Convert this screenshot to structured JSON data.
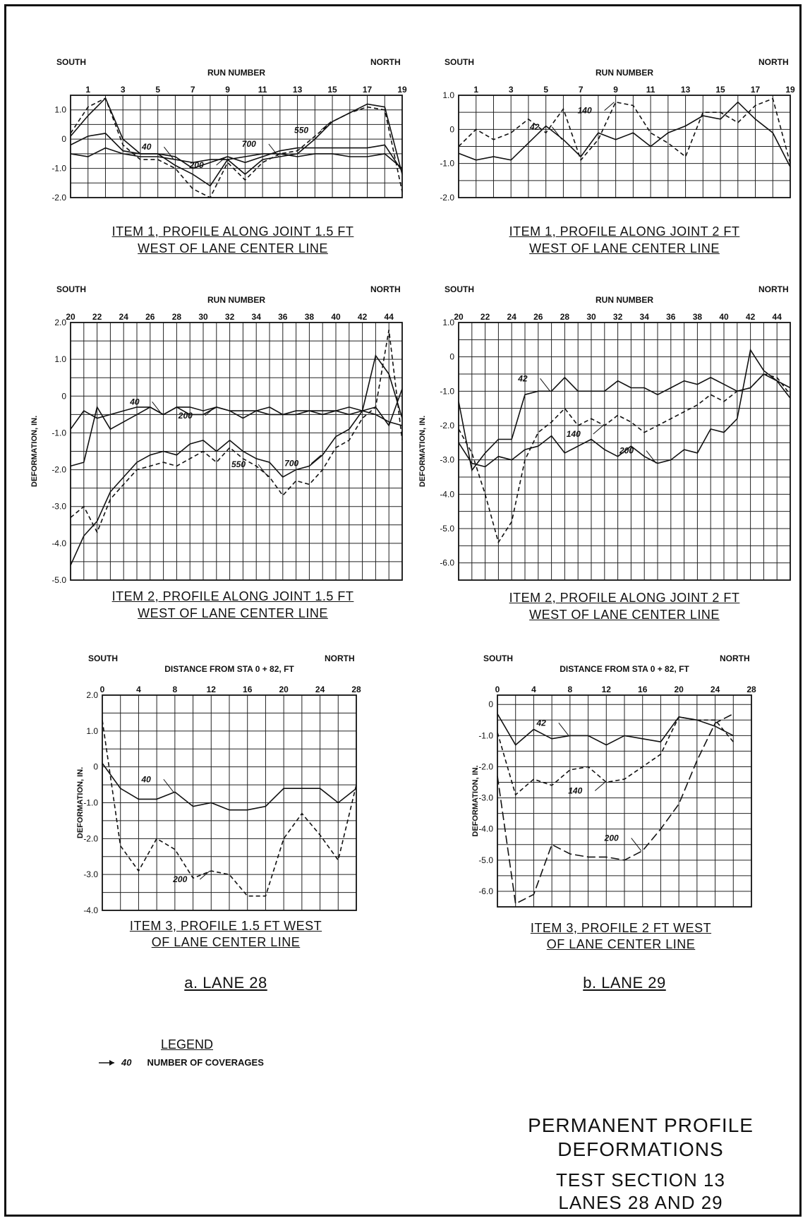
{
  "legend": {
    "heading": "LEGEND",
    "sample_label": "40",
    "text": "NUMBER OF COVERAGES"
  },
  "lanes": {
    "a": "a. LANE 28",
    "b": "b. LANE 29"
  },
  "main_title": {
    "line1": "PERMANENT PROFILE",
    "line2": "DEFORMATIONS",
    "line3": "TEST SECTION 13",
    "line4": "LANES 28 AND 29"
  },
  "charts": [
    {
      "id": "i1_lane28",
      "caption1": "ITEM 1, PROFILE ALONG JOINT 1.5 FT",
      "caption2": "WEST OF LANE CENTER LINE",
      "south": "SOUTH",
      "north": "NORTH",
      "xlabel": "RUN NUMBER",
      "ylabel": "",
      "ytick_labels": [
        "1.0",
        "0",
        "-1.0",
        "-2.0"
      ]
    },
    {
      "id": "i1_lane29",
      "caption1": "ITEM 1, PROFILE ALONG JOINT 2 FT",
      "caption2": "WEST OF LANE CENTER LINE",
      "south": "SOUTH",
      "north": "NORTH",
      "xlabel": "RUN NUMBER",
      "ylabel": "",
      "ytick_labels": [
        "1.0",
        "0",
        "-1.0",
        "-2.0"
      ]
    },
    {
      "id": "i2_lane28",
      "caption1": "ITEM 2, PROFILE ALONG JOINT 1.5 FT",
      "caption2": "WEST OF LANE CENTER LINE",
      "south": "SOUTH",
      "north": "NORTH",
      "xlabel": "RUN NUMBER",
      "ylabel": "DEFORMATION, IN.",
      "ytick_labels": [
        "2.0",
        "1.0",
        "0",
        "-1.0",
        "-2.0",
        "-3.0",
        "-4.0",
        "-5.0"
      ]
    },
    {
      "id": "i2_lane29",
      "caption1": "ITEM 2, PROFILE ALONG JOINT 2 FT",
      "caption2": "WEST OF LANE CENTER LINE",
      "south": "SOUTH",
      "north": "NORTH",
      "xlabel": "RUN NUMBER",
      "ylabel": "DEFORMATION, IN.",
      "ytick_labels": [
        "1.0",
        "0",
        "-1.0",
        "-2.0",
        "-3.0",
        "-4.0",
        "-5.0",
        "-6.0"
      ]
    },
    {
      "id": "i3_lane28",
      "caption1": "ITEM 3, PROFILE 1.5 FT WEST",
      "caption2": "OF LANE CENTER LINE",
      "south": "SOUTH",
      "north": "NORTH",
      "xlabel": "DISTANCE FROM STA 0 + 82, FT",
      "ylabel": "DEFORMATION, IN.",
      "ytick_labels": [
        "2.0",
        "1.0",
        "0",
        "-1.0",
        "-2.0",
        "-3.0",
        "-4.0"
      ]
    },
    {
      "id": "i3_lane29",
      "caption1": "ITEM 3, PROFILE 2 FT WEST",
      "caption2": "OF LANE CENTER LINE",
      "south": "SOUTH",
      "north": "NORTH",
      "xlabel": "DISTANCE FROM STA 0 + 82, FT",
      "ylabel": "DEFORMATION, IN.",
      "ytick_labels": [
        "0",
        "-1.0",
        "-2.0",
        "-3.0",
        "-4.0",
        "-5.0",
        "-6.0"
      ]
    }
  ],
  "chart_data": [
    {
      "type": "line",
      "id": "i1_lane28",
      "x": [
        0,
        1,
        2,
        3,
        4,
        5,
        6,
        7,
        8,
        9,
        10,
        11,
        12,
        13,
        14,
        15,
        16,
        17,
        18,
        19
      ],
      "xticks": [
        1,
        3,
        5,
        7,
        9,
        11,
        13,
        15,
        17,
        19
      ],
      "xlim": [
        0,
        19
      ],
      "ylim": [
        -2.0,
        1.0
      ],
      "ymax": 1.5,
      "series": [
        {
          "name": "40",
          "dash": "solid",
          "values": [
            -0.5,
            -0.6,
            -0.3,
            -0.5,
            -0.6,
            -0.6,
            -0.7,
            -0.8,
            -0.7,
            -0.7,
            -0.6,
            -0.5,
            -0.5,
            -0.6,
            -0.5,
            -0.5,
            -0.6,
            -0.6,
            -0.5,
            -1.0
          ]
        },
        {
          "name": "200",
          "dash": "solid",
          "values": [
            -0.2,
            0.1,
            0.2,
            -0.4,
            -0.5,
            -0.5,
            -0.6,
            -1.0,
            -0.8,
            -0.6,
            -0.8,
            -0.6,
            -0.4,
            -0.3,
            -0.3,
            -0.3,
            -0.3,
            -0.3,
            -0.2,
            -1.1
          ]
        },
        {
          "name": "700",
          "dash": "solid",
          "values": [
            0.1,
            0.8,
            1.4,
            0.0,
            -0.5,
            -0.5,
            -0.9,
            -1.2,
            -1.6,
            -0.7,
            -1.2,
            -0.7,
            -0.6,
            -0.5,
            0.0,
            0.6,
            0.9,
            1.2,
            1.1,
            -1.2
          ]
        },
        {
          "name": "550",
          "dash": "dashed",
          "values": [
            0.2,
            1.1,
            1.4,
            -0.2,
            -0.7,
            -0.7,
            -1.0,
            -1.7,
            -2.0,
            -0.8,
            -1.4,
            -0.8,
            -0.5,
            -0.4,
            0.1,
            0.6,
            0.9,
            1.1,
            1.0,
            -1.8
          ]
        }
      ],
      "annotations": [
        "200",
        "40",
        "700",
        "550"
      ]
    },
    {
      "type": "line",
      "id": "i1_lane29",
      "x": [
        0,
        1,
        2,
        3,
        4,
        5,
        6,
        7,
        8,
        9,
        10,
        11,
        12,
        13,
        14,
        15,
        16,
        17,
        18,
        19
      ],
      "xticks": [
        1,
        3,
        5,
        7,
        9,
        11,
        13,
        15,
        17,
        19
      ],
      "xlim": [
        0,
        19
      ],
      "ylim": [
        -2.0,
        1.0
      ],
      "ymax": 1.0,
      "series": [
        {
          "name": "42",
          "dash": "solid",
          "values": [
            -0.7,
            -0.9,
            -0.8,
            -0.9,
            -0.4,
            0.1,
            -0.3,
            -0.8,
            -0.1,
            -0.3,
            -0.1,
            -0.5,
            -0.1,
            0.1,
            0.4,
            0.3,
            0.8,
            0.3,
            -0.1,
            -1.1
          ]
        },
        {
          "name": "140",
          "dash": "dashed",
          "values": [
            -0.5,
            0.0,
            -0.3,
            -0.1,
            0.3,
            -0.1,
            0.6,
            -0.9,
            -0.3,
            0.8,
            0.7,
            -0.1,
            -0.4,
            -0.8,
            0.5,
            0.5,
            0.2,
            0.7,
            0.9,
            -1.0
          ]
        }
      ],
      "annotations": [
        "140",
        "42"
      ]
    },
    {
      "type": "line",
      "id": "i2_lane28",
      "x": [
        20,
        21,
        22,
        23,
        24,
        25,
        26,
        27,
        28,
        29,
        30,
        31,
        32,
        33,
        34,
        35,
        36,
        37,
        38,
        39,
        40,
        41,
        42,
        43,
        44,
        45
      ],
      "xticks": [
        20,
        22,
        24,
        26,
        28,
        30,
        32,
        34,
        36,
        38,
        40,
        42,
        44
      ],
      "xlim": [
        20,
        45
      ],
      "ylim": [
        -5.0,
        2.0
      ],
      "ymax": 2.0,
      "series": [
        {
          "name": "40",
          "dash": "solid",
          "values": [
            -0.9,
            -0.4,
            -0.6,
            -0.5,
            -0.4,
            -0.3,
            -0.3,
            -0.5,
            -0.3,
            -0.3,
            -0.4,
            -0.3,
            -0.4,
            -0.4,
            -0.4,
            -0.5,
            -0.5,
            -0.4,
            -0.4,
            -0.4,
            -0.4,
            -0.5,
            -0.4,
            -0.5,
            -0.7,
            -0.8
          ]
        },
        {
          "name": "200",
          "dash": "solid",
          "values": [
            -1.9,
            -1.8,
            -0.3,
            -0.9,
            -0.7,
            -0.5,
            -0.3,
            -0.5,
            -0.3,
            -0.5,
            -0.5,
            -0.3,
            -0.4,
            -0.6,
            -0.4,
            -0.3,
            -0.5,
            -0.5,
            -0.4,
            -0.5,
            -0.4,
            -0.3,
            -0.4,
            -0.3,
            -0.8,
            0.2
          ]
        },
        {
          "name": "550",
          "dash": "dashed",
          "values": [
            -3.3,
            -3.0,
            -3.7,
            -2.8,
            -2.4,
            -2.0,
            -1.9,
            -1.8,
            -1.9,
            -1.7,
            -1.5,
            -1.8,
            -1.4,
            -1.7,
            -1.9,
            -2.2,
            -2.7,
            -2.3,
            -2.4,
            -2.0,
            -1.4,
            -1.2,
            -0.6,
            -0.3,
            1.8,
            -1.2
          ]
        },
        {
          "name": "700",
          "dash": "solid",
          "values": [
            -4.6,
            -3.8,
            -3.4,
            -2.6,
            -2.2,
            -1.8,
            -1.6,
            -1.5,
            -1.6,
            -1.3,
            -1.2,
            -1.5,
            -1.2,
            -1.5,
            -1.7,
            -1.8,
            -2.2,
            -2.0,
            -1.9,
            -1.6,
            -1.1,
            -0.9,
            -0.4,
            1.1,
            0.6,
            -0.6
          ]
        }
      ],
      "annotations": [
        "40",
        "40",
        "40",
        "200",
        "550",
        "700"
      ]
    },
    {
      "type": "line",
      "id": "i2_lane29",
      "x": [
        20,
        21,
        22,
        23,
        24,
        25,
        26,
        27,
        28,
        29,
        30,
        31,
        32,
        33,
        34,
        35,
        36,
        37,
        38,
        39,
        40,
        41,
        42,
        43,
        44,
        45
      ],
      "xticks": [
        20,
        22,
        24,
        26,
        28,
        30,
        32,
        34,
        36,
        38,
        40,
        42,
        44
      ],
      "xlim": [
        20,
        45
      ],
      "ylim": [
        -6.5,
        1.0
      ],
      "ymax": 1.0,
      "series": [
        {
          "name": "42",
          "dash": "solid",
          "values": [
            -1.3,
            -3.3,
            -2.8,
            -2.4,
            -2.4,
            -1.1,
            -1.0,
            -1.0,
            -0.6,
            -1.0,
            -1.0,
            -1.0,
            -0.7,
            -0.9,
            -0.9,
            -1.1,
            -0.9,
            -0.7,
            -0.8,
            -0.6,
            -0.8,
            -1.0,
            -0.9,
            -0.5,
            -0.7,
            -1.2
          ]
        },
        {
          "name": "140",
          "dash": "dashed",
          "values": [
            -2.1,
            -2.8,
            -4.0,
            -5.4,
            -4.8,
            -3.0,
            -2.2,
            -1.9,
            -1.5,
            -2.0,
            -1.8,
            -2.0,
            -1.7,
            -1.9,
            -2.2,
            -2.0,
            -1.8,
            -1.6,
            -1.4,
            -1.1,
            -1.3,
            -1.0,
            -0.9,
            -0.5,
            -0.6,
            -1.1
          ]
        },
        {
          "name": "200",
          "dash": "solid",
          "values": [
            -2.5,
            -3.1,
            -3.2,
            -2.9,
            -3.0,
            -2.7,
            -2.6,
            -2.3,
            -2.8,
            -2.6,
            -2.4,
            -2.7,
            -2.9,
            -2.6,
            -2.9,
            -3.1,
            -3.0,
            -2.7,
            -2.8,
            -2.1,
            -2.2,
            -1.8,
            0.2,
            -0.4,
            -0.7,
            -0.9
          ]
        }
      ],
      "annotations": [
        "42",
        "140",
        "200"
      ]
    },
    {
      "type": "line",
      "id": "i3_lane28",
      "x": [
        0,
        2,
        4,
        6,
        8,
        10,
        12,
        14,
        16,
        18,
        20,
        22,
        24,
        26,
        28
      ],
      "xticks": [
        0,
        4,
        8,
        12,
        16,
        20,
        24,
        28
      ],
      "xlim": [
        0,
        28
      ],
      "ylim": [
        -4.0,
        2.0
      ],
      "ymax": 2.0,
      "series": [
        {
          "name": "40",
          "dash": "solid",
          "values": [
            0.1,
            -0.6,
            -0.9,
            -0.9,
            -0.7,
            -1.1,
            -1.0,
            -1.2,
            -1.2,
            -1.1,
            -0.6,
            -0.6,
            -0.6,
            -1.0,
            -0.6
          ]
        },
        {
          "name": "200",
          "dash": "dashed",
          "values": [
            1.3,
            -2.2,
            -2.9,
            -2.0,
            -2.3,
            -3.1,
            -2.9,
            -3.0,
            -3.6,
            -3.6,
            -2.0,
            -1.3,
            -1.9,
            -2.6,
            -0.5
          ]
        }
      ],
      "annotations": [
        "40",
        "200"
      ]
    },
    {
      "type": "line",
      "id": "i3_lane29",
      "x": [
        0,
        2,
        4,
        6,
        8,
        10,
        12,
        14,
        16,
        18,
        20,
        22,
        24,
        26
      ],
      "xticks": [
        0,
        4,
        8,
        12,
        16,
        20,
        24,
        28
      ],
      "xlim": [
        0,
        28
      ],
      "ylim": [
        -6.5,
        0.0
      ],
      "ymax": 0.3,
      "series": [
        {
          "name": "42",
          "dash": "solid",
          "values": [
            -0.3,
            -1.3,
            -0.8,
            -1.1,
            -1.0,
            -1.0,
            -1.3,
            -1.0,
            -1.1,
            -1.2,
            -0.4,
            -0.5,
            -0.7,
            -1.0
          ]
        },
        {
          "name": "140",
          "dash": "dashed",
          "values": [
            -0.9,
            -2.9,
            -2.4,
            -2.6,
            -2.1,
            -2.0,
            -2.5,
            -2.4,
            -2.0,
            -1.6,
            -0.4,
            -0.5,
            -0.5,
            -1.2
          ]
        },
        {
          "name": "200",
          "dash": "longdash",
          "values": [
            -2.3,
            -6.4,
            -6.1,
            -4.5,
            -4.8,
            -4.9,
            -4.9,
            -5.0,
            -4.7,
            -4.0,
            -3.2,
            -1.8,
            -0.6,
            -0.3
          ]
        }
      ],
      "annotations": [
        "42",
        "140",
        "200"
      ]
    }
  ]
}
